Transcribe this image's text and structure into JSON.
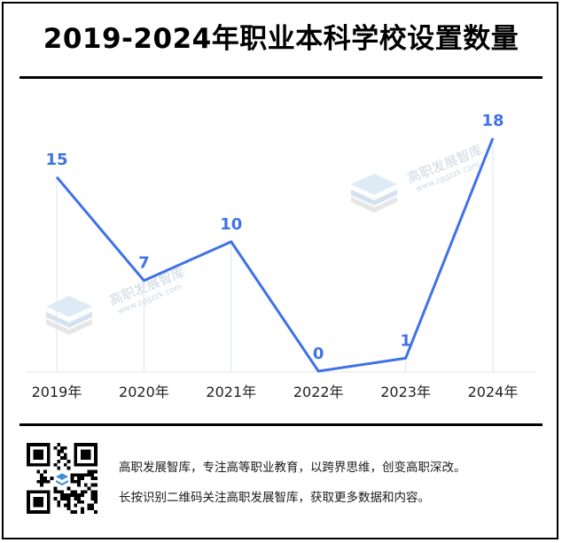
{
  "header": {
    "title": "2019-2024年职业本科学校设置数量"
  },
  "chart_data": {
    "type": "line",
    "title": "2019-2024年职业本科学校设置数量",
    "categories": [
      "2019年",
      "2020年",
      "2021年",
      "2022年",
      "2023年",
      "2024年"
    ],
    "series": [
      {
        "values": [
          15,
          7,
          10,
          0,
          1,
          18
        ]
      }
    ],
    "data_labels": [
      "15",
      "7",
      "10",
      "0",
      "1",
      "18"
    ],
    "ylim": [
      0,
      18
    ],
    "grid": false,
    "legend": "none",
    "colors": {
      "line": "#3f72e8",
      "label": "#3f72e8",
      "axis_text": "#222222",
      "drop_line": "#dce3ee"
    }
  },
  "watermark": {
    "name": "高职发展智库",
    "url": "www.zggzzk.com"
  },
  "footer": {
    "line1": "高职发展智库，专注高等职业教育，以跨界思维，创变高职深改。",
    "line2": "长按识别二维码关注高职发展智库，获取更多数据和内容。"
  }
}
